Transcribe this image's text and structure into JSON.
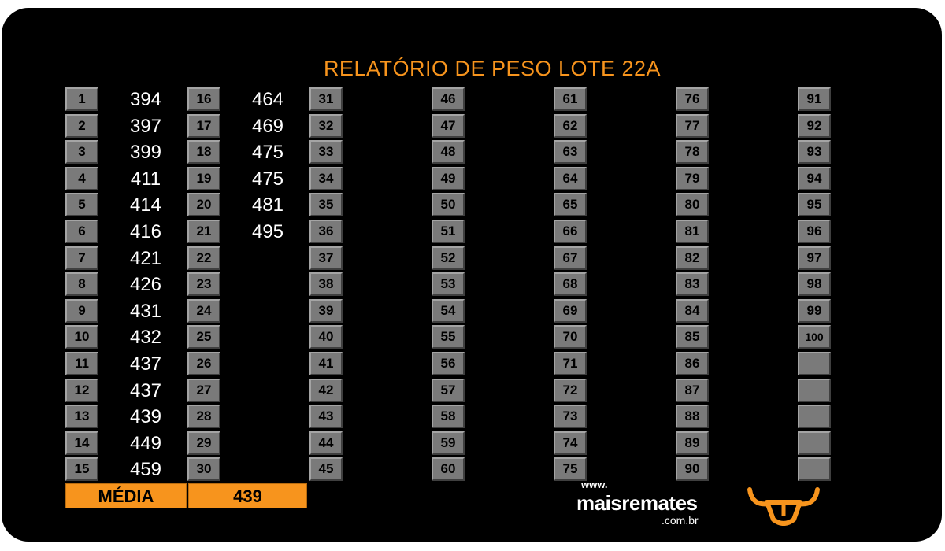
{
  "title": "RELATÓRIO DE PESO LOTE 22A",
  "columns": [
    {
      "rows": [
        {
          "n": "1",
          "v": "394"
        },
        {
          "n": "2",
          "v": "397"
        },
        {
          "n": "3",
          "v": "399"
        },
        {
          "n": "4",
          "v": "411"
        },
        {
          "n": "5",
          "v": "414"
        },
        {
          "n": "6",
          "v": "416"
        },
        {
          "n": "7",
          "v": "421"
        },
        {
          "n": "8",
          "v": "426"
        },
        {
          "n": "9",
          "v": "431"
        },
        {
          "n": "10",
          "v": "432"
        },
        {
          "n": "11",
          "v": "437"
        },
        {
          "n": "12",
          "v": "437"
        },
        {
          "n": "13",
          "v": "439"
        },
        {
          "n": "14",
          "v": "449"
        },
        {
          "n": "15",
          "v": "459"
        }
      ]
    },
    {
      "rows": [
        {
          "n": "16",
          "v": "464"
        },
        {
          "n": "17",
          "v": "469"
        },
        {
          "n": "18",
          "v": "475"
        },
        {
          "n": "19",
          "v": "475"
        },
        {
          "n": "20",
          "v": "481"
        },
        {
          "n": "21",
          "v": "495"
        },
        {
          "n": "22",
          "v": ""
        },
        {
          "n": "23",
          "v": ""
        },
        {
          "n": "24",
          "v": ""
        },
        {
          "n": "25",
          "v": ""
        },
        {
          "n": "26",
          "v": ""
        },
        {
          "n": "27",
          "v": ""
        },
        {
          "n": "28",
          "v": ""
        },
        {
          "n": "29",
          "v": ""
        },
        {
          "n": "30",
          "v": ""
        }
      ]
    },
    {
      "rows": [
        {
          "n": "31",
          "v": ""
        },
        {
          "n": "32",
          "v": ""
        },
        {
          "n": "33",
          "v": ""
        },
        {
          "n": "34",
          "v": ""
        },
        {
          "n": "35",
          "v": ""
        },
        {
          "n": "36",
          "v": ""
        },
        {
          "n": "37",
          "v": ""
        },
        {
          "n": "38",
          "v": ""
        },
        {
          "n": "39",
          "v": ""
        },
        {
          "n": "40",
          "v": ""
        },
        {
          "n": "41",
          "v": ""
        },
        {
          "n": "42",
          "v": ""
        },
        {
          "n": "43",
          "v": ""
        },
        {
          "n": "44",
          "v": ""
        },
        {
          "n": "45",
          "v": ""
        }
      ]
    },
    {
      "rows": [
        {
          "n": "46",
          "v": ""
        },
        {
          "n": "47",
          "v": ""
        },
        {
          "n": "48",
          "v": ""
        },
        {
          "n": "49",
          "v": ""
        },
        {
          "n": "50",
          "v": ""
        },
        {
          "n": "51",
          "v": ""
        },
        {
          "n": "52",
          "v": ""
        },
        {
          "n": "53",
          "v": ""
        },
        {
          "n": "54",
          "v": ""
        },
        {
          "n": "55",
          "v": ""
        },
        {
          "n": "56",
          "v": ""
        },
        {
          "n": "57",
          "v": ""
        },
        {
          "n": "58",
          "v": ""
        },
        {
          "n": "59",
          "v": ""
        },
        {
          "n": "60",
          "v": ""
        }
      ]
    },
    {
      "rows": [
        {
          "n": "61",
          "v": ""
        },
        {
          "n": "62",
          "v": ""
        },
        {
          "n": "63",
          "v": ""
        },
        {
          "n": "64",
          "v": ""
        },
        {
          "n": "65",
          "v": ""
        },
        {
          "n": "66",
          "v": ""
        },
        {
          "n": "67",
          "v": ""
        },
        {
          "n": "68",
          "v": ""
        },
        {
          "n": "69",
          "v": ""
        },
        {
          "n": "70",
          "v": ""
        },
        {
          "n": "71",
          "v": ""
        },
        {
          "n": "72",
          "v": ""
        },
        {
          "n": "73",
          "v": ""
        },
        {
          "n": "74",
          "v": ""
        },
        {
          "n": "75",
          "v": ""
        }
      ]
    },
    {
      "rows": [
        {
          "n": "76",
          "v": ""
        },
        {
          "n": "77",
          "v": ""
        },
        {
          "n": "78",
          "v": ""
        },
        {
          "n": "79",
          "v": ""
        },
        {
          "n": "80",
          "v": ""
        },
        {
          "n": "81",
          "v": ""
        },
        {
          "n": "82",
          "v": ""
        },
        {
          "n": "83",
          "v": ""
        },
        {
          "n": "84",
          "v": ""
        },
        {
          "n": "85",
          "v": ""
        },
        {
          "n": "86",
          "v": ""
        },
        {
          "n": "87",
          "v": ""
        },
        {
          "n": "88",
          "v": ""
        },
        {
          "n": "89",
          "v": ""
        },
        {
          "n": "90",
          "v": ""
        }
      ]
    },
    {
      "rows": [
        {
          "n": "91",
          "v": ""
        },
        {
          "n": "92",
          "v": ""
        },
        {
          "n": "93",
          "v": ""
        },
        {
          "n": "94",
          "v": ""
        },
        {
          "n": "95",
          "v": ""
        },
        {
          "n": "96",
          "v": ""
        },
        {
          "n": "97",
          "v": ""
        },
        {
          "n": "98",
          "v": ""
        },
        {
          "n": "99",
          "v": ""
        },
        {
          "n": "100",
          "v": ""
        },
        {
          "n": "",
          "v": ""
        },
        {
          "n": "",
          "v": ""
        },
        {
          "n": "",
          "v": ""
        },
        {
          "n": "",
          "v": ""
        },
        {
          "n": "",
          "v": ""
        }
      ]
    }
  ],
  "average": {
    "label": "MÉDIA",
    "value": "439"
  },
  "logo": {
    "www": "www.",
    "name": "maisremates",
    "domain": ".com.br",
    "icon": "bull-head-icon"
  },
  "colors": {
    "accent": "#f7941d",
    "cell": "#7a7a7a",
    "background": "#000000"
  }
}
